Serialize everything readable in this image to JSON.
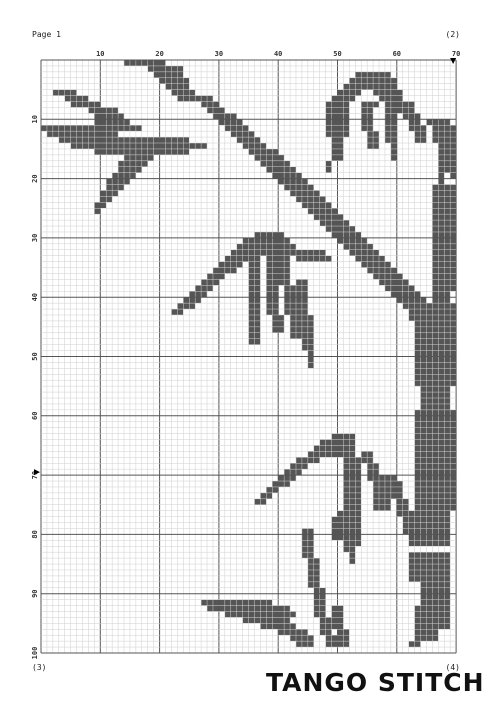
{
  "page": {
    "label": "Page 1",
    "page_right": "(2)",
    "page_bottom_left": "(3)",
    "page_bottom_right": "(4)"
  },
  "pattern": {
    "columns": 70,
    "rows": 100,
    "x_ticks": [
      10,
      20,
      30,
      40,
      50,
      60,
      70
    ],
    "y_ticks": [
      10,
      20,
      30,
      40,
      50,
      60,
      70,
      80,
      90,
      100
    ],
    "center_markers": {
      "column": 70,
      "row": 70
    },
    "stitch_color": "#555555",
    "grid_color": "#cfcfcf",
    "major_grid_color": "#555555",
    "blocks": [
      [
        15,
        1,
        7,
        1
      ],
      [
        19,
        2,
        6,
        1
      ],
      [
        20,
        3,
        5,
        1
      ],
      [
        21,
        4,
        5,
        1
      ],
      [
        22,
        5,
        4,
        1
      ],
      [
        23,
        6,
        4,
        1
      ],
      [
        24,
        7,
        3,
        1
      ],
      [
        3,
        6,
        4,
        1
      ],
      [
        5,
        7,
        4,
        1
      ],
      [
        6,
        8,
        5,
        1
      ],
      [
        9,
        9,
        5,
        1
      ],
      [
        10,
        10,
        5,
        1
      ],
      [
        10,
        11,
        6,
        1
      ],
      [
        11,
        12,
        7,
        1
      ],
      [
        1,
        12,
        11,
        1
      ],
      [
        2,
        13,
        12,
        1
      ],
      [
        4,
        14,
        14,
        1
      ],
      [
        6,
        15,
        16,
        1
      ],
      [
        10,
        16,
        12,
        1
      ],
      [
        16,
        14,
        10,
        1
      ],
      [
        17,
        15,
        12,
        1
      ],
      [
        18,
        16,
        8,
        1
      ],
      [
        15,
        17,
        5,
        1
      ],
      [
        14,
        18,
        5,
        1
      ],
      [
        14,
        19,
        4,
        1
      ],
      [
        13,
        20,
        4,
        1
      ],
      [
        12,
        21,
        4,
        1
      ],
      [
        12,
        22,
        3,
        1
      ],
      [
        11,
        23,
        3,
        1
      ],
      [
        11,
        24,
        2,
        1
      ],
      [
        10,
        25,
        2,
        1
      ],
      [
        10,
        26,
        1,
        1
      ],
      [
        27,
        7,
        3,
        1
      ],
      [
        28,
        8,
        3,
        1
      ],
      [
        29,
        9,
        3,
        1
      ],
      [
        30,
        10,
        4,
        1
      ],
      [
        31,
        11,
        4,
        1
      ],
      [
        32,
        12,
        4,
        1
      ],
      [
        33,
        13,
        4,
        1
      ],
      [
        34,
        14,
        4,
        1
      ],
      [
        35,
        15,
        4,
        1
      ],
      [
        36,
        16,
        5,
        1
      ],
      [
        37,
        17,
        5,
        1
      ],
      [
        38,
        18,
        5,
        1
      ],
      [
        39,
        19,
        5,
        1
      ],
      [
        40,
        20,
        5,
        1
      ],
      [
        41,
        21,
        5,
        1
      ],
      [
        42,
        22,
        5,
        1
      ],
      [
        43,
        23,
        5,
        1
      ],
      [
        44,
        24,
        5,
        1
      ],
      [
        45,
        25,
        5,
        1
      ],
      [
        46,
        26,
        5,
        1
      ],
      [
        47,
        27,
        5,
        1
      ],
      [
        48,
        28,
        5,
        1
      ],
      [
        49,
        29,
        5,
        1
      ],
      [
        50,
        30,
        5,
        1
      ],
      [
        51,
        31,
        5,
        1
      ],
      [
        52,
        32,
        5,
        1
      ],
      [
        53,
        33,
        5,
        1
      ],
      [
        54,
        34,
        5,
        1
      ],
      [
        55,
        35,
        5,
        1
      ],
      [
        56,
        36,
        5,
        1
      ],
      [
        57,
        37,
        5,
        1
      ],
      [
        58,
        38,
        5,
        1
      ],
      [
        59,
        39,
        5,
        1
      ],
      [
        60,
        40,
        5,
        1
      ],
      [
        61,
        41,
        5,
        1
      ],
      [
        62,
        42,
        4,
        1
      ],
      [
        63,
        43,
        3,
        1
      ],
      [
        63,
        44,
        2,
        1
      ],
      [
        37,
        30,
        5,
        1
      ],
      [
        35,
        31,
        8,
        1
      ],
      [
        34,
        32,
        10,
        1
      ],
      [
        33,
        33,
        12,
        1
      ],
      [
        45,
        33,
        4,
        1
      ],
      [
        44,
        34,
        6,
        1
      ],
      [
        32,
        34,
        4,
        1
      ],
      [
        31,
        35,
        4,
        1
      ],
      [
        30,
        36,
        4,
        1
      ],
      [
        29,
        37,
        3,
        1
      ],
      [
        28,
        38,
        3,
        1
      ],
      [
        27,
        39,
        3,
        1
      ],
      [
        26,
        40,
        3,
        1
      ],
      [
        25,
        41,
        3,
        1
      ],
      [
        24,
        42,
        3,
        1
      ],
      [
        23,
        43,
        2,
        1
      ],
      [
        36,
        34,
        2,
        15
      ],
      [
        39,
        34,
        2,
        10
      ],
      [
        40,
        44,
        2,
        3
      ],
      [
        41,
        34,
        2,
        5
      ],
      [
        42,
        39,
        2,
        5
      ],
      [
        43,
        44,
        2,
        4
      ],
      [
        44,
        38,
        2,
        8
      ],
      [
        45,
        44,
        2,
        6
      ],
      [
        46,
        49,
        1,
        4
      ],
      [
        54,
        3,
        6,
        1
      ],
      [
        53,
        4,
        8,
        1
      ],
      [
        52,
        5,
        9,
        1
      ],
      [
        51,
        6,
        4,
        1
      ],
      [
        57,
        6,
        5,
        1
      ],
      [
        50,
        7,
        4,
        1
      ],
      [
        58,
        7,
        4,
        1
      ],
      [
        49,
        8,
        4,
        6
      ],
      [
        50,
        14,
        2,
        4
      ],
      [
        49,
        18,
        1,
        2
      ],
      [
        55,
        8,
        3,
        1
      ],
      [
        55,
        9,
        2,
        4
      ],
      [
        56,
        13,
        2,
        3
      ],
      [
        59,
        8,
        3,
        2
      ],
      [
        59,
        10,
        2,
        5
      ],
      [
        60,
        15,
        1,
        3
      ],
      [
        62,
        8,
        2,
        3
      ],
      [
        63,
        10,
        2,
        3
      ],
      [
        64,
        12,
        2,
        3
      ],
      [
        66,
        11,
        4,
        1
      ],
      [
        67,
        12,
        4,
        3
      ],
      [
        68,
        15,
        3,
        5
      ],
      [
        68,
        20,
        1,
        2
      ],
      [
        70,
        20,
        1,
        1
      ],
      [
        67,
        22,
        4,
        18
      ],
      [
        67,
        40,
        3,
        2
      ],
      [
        64,
        42,
        7,
        14
      ],
      [
        65,
        56,
        5,
        4
      ],
      [
        64,
        60,
        7,
        5
      ],
      [
        64,
        65,
        7,
        12
      ],
      [
        63,
        77,
        7,
        6
      ],
      [
        63,
        84,
        7,
        5
      ],
      [
        65,
        89,
        5,
        4
      ],
      [
        64,
        93,
        6,
        4
      ],
      [
        64,
        97,
        4,
        2
      ],
      [
        63,
        99,
        2,
        1
      ],
      [
        50,
        64,
        4,
        1
      ],
      [
        48,
        65,
        6,
        1
      ],
      [
        47,
        66,
        7,
        1
      ],
      [
        46,
        67,
        8,
        1
      ],
      [
        44,
        68,
        4,
        1
      ],
      [
        43,
        69,
        3,
        1
      ],
      [
        42,
        70,
        3,
        1
      ],
      [
        41,
        71,
        3,
        1
      ],
      [
        40,
        72,
        3,
        1
      ],
      [
        39,
        73,
        2,
        1
      ],
      [
        38,
        74,
        2,
        1
      ],
      [
        37,
        75,
        2,
        1
      ],
      [
        52,
        68,
        3,
        9
      ],
      [
        53,
        77,
        2,
        6
      ],
      [
        51,
        77,
        2,
        5
      ],
      [
        50,
        78,
        2,
        4
      ],
      [
        52,
        82,
        2,
        2
      ],
      [
        53,
        84,
        1,
        2
      ],
      [
        55,
        67,
        2,
        2
      ],
      [
        56,
        69,
        2,
        3
      ],
      [
        57,
        72,
        3,
        5
      ],
      [
        58,
        71,
        3,
        1
      ],
      [
        60,
        72,
        2,
        3
      ],
      [
        61,
        75,
        2,
        3
      ],
      [
        62,
        78,
        2,
        3
      ],
      [
        63,
        81,
        2,
        2
      ],
      [
        45,
        80,
        2,
        5
      ],
      [
        46,
        85,
        2,
        5
      ],
      [
        47,
        90,
        2,
        5
      ],
      [
        48,
        95,
        2,
        3
      ],
      [
        49,
        98,
        2,
        2
      ],
      [
        50,
        93,
        2,
        4
      ],
      [
        51,
        97,
        2,
        3
      ],
      [
        28,
        92,
        12,
        1
      ],
      [
        29,
        93,
        14,
        1
      ],
      [
        32,
        94,
        12,
        1
      ],
      [
        35,
        95,
        8,
        1
      ],
      [
        38,
        96,
        6,
        1
      ],
      [
        41,
        97,
        5,
        1
      ],
      [
        43,
        98,
        4,
        1
      ],
      [
        44,
        99,
        3,
        1
      ]
    ]
  },
  "brand": {
    "logo_text": "TANGO STITCH"
  }
}
